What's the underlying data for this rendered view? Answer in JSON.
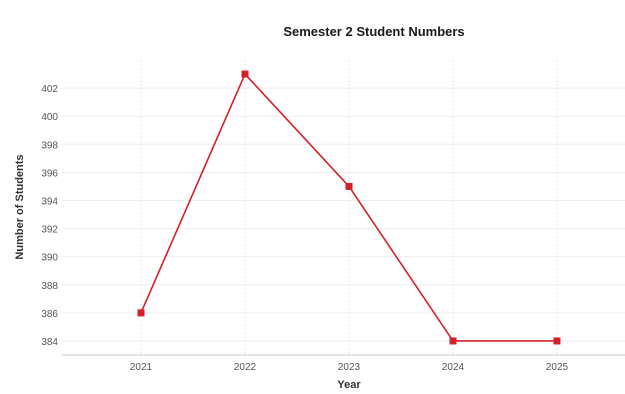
{
  "chart_data": {
    "type": "line",
    "title": "Semester 2 Student Numbers",
    "xlabel": "Year",
    "ylabel": "Number of Students",
    "categories": [
      "2021",
      "2022",
      "2023",
      "2024",
      "2025"
    ],
    "series": [
      {
        "values": [
          386,
          403,
          395,
          384,
          384
        ],
        "color": "#d42027",
        "marker": "square"
      }
    ],
    "yticks": [
      384,
      386,
      388,
      390,
      392,
      394,
      396,
      398,
      400,
      402
    ],
    "ylim": [
      383,
      404
    ],
    "grid": true
  }
}
